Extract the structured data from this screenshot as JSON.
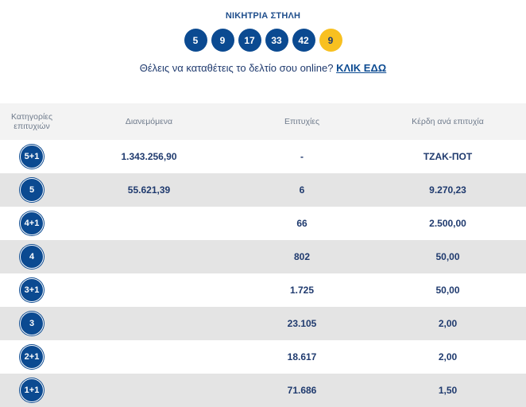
{
  "header": {
    "title": "ΝΙΚΗΤΡΙΑ ΣΤΗΛΗ",
    "numbers": [
      "5",
      "9",
      "17",
      "33",
      "42"
    ],
    "bonus": "9",
    "cta_text": "Θέλεις να καταθέτεις το δελτίο σου online?",
    "cta_link": "ΚΛΙΚ ΕΔΩ"
  },
  "table": {
    "headers": {
      "category_line1": "Κατηγορίες",
      "category_line2": "επιτυχιών",
      "distributed": "Διανεμόμενα",
      "winners": "Επιτυχίες",
      "prize": "Κέρδη ανά επιτυχία"
    },
    "rows": [
      {
        "category": "5+1",
        "distributed": "1.343.256,90",
        "winners": "-",
        "prize": "ΤΖΑΚ-ΠΟΤ"
      },
      {
        "category": "5",
        "distributed": "55.621,39",
        "winners": "6",
        "prize": "9.270,23"
      },
      {
        "category": "4+1",
        "distributed": "",
        "winners": "66",
        "prize": "2.500,00"
      },
      {
        "category": "4",
        "distributed": "",
        "winners": "802",
        "prize": "50,00"
      },
      {
        "category": "3+1",
        "distributed": "",
        "winners": "1.725",
        "prize": "50,00"
      },
      {
        "category": "3",
        "distributed": "",
        "winners": "23.105",
        "prize": "2,00"
      },
      {
        "category": "2+1",
        "distributed": "",
        "winners": "18.617",
        "prize": "2,00"
      },
      {
        "category": "1+1",
        "distributed": "",
        "winners": "71.686",
        "prize": "1,50"
      }
    ]
  },
  "colors": {
    "ball_blue": "#0b4a91",
    "bonus_yellow": "#f8c020",
    "row_alt": "#e4e4e4"
  }
}
